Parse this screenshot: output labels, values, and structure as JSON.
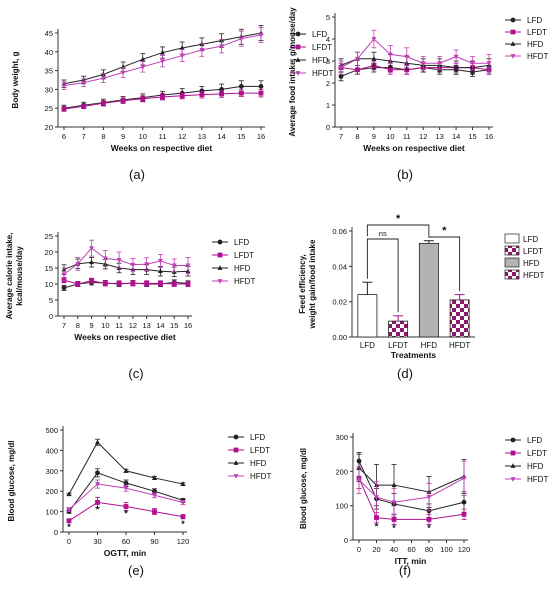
{
  "colors": {
    "lfd": "#222222",
    "lfdt": "#b0108e",
    "hfd": "#222222",
    "hfdt": "#c040b8",
    "hfd_bar": "#b3b3b3",
    "check": "#8b1a6b",
    "axis": "#333333"
  },
  "chart_data": [
    {
      "panel": "(a)",
      "type": "line",
      "xlabel": "Weeks on respective diet",
      "ylabel": "Body weight, g",
      "xlim": [
        6,
        16
      ],
      "ylim": [
        20,
        45
      ],
      "xticks": [
        6,
        7,
        8,
        9,
        10,
        11,
        12,
        13,
        14,
        15,
        16
      ],
      "yticks": [
        20,
        25,
        30,
        35,
        40,
        45
      ],
      "legend_position": "top-right",
      "x": [
        6,
        7,
        8,
        9,
        10,
        11,
        12,
        13,
        14,
        15,
        16
      ],
      "series": [
        {
          "name": "LFD",
          "marker": "circle",
          "values": [
            25,
            25.8,
            26.5,
            27.2,
            27.8,
            28.5,
            29,
            29.6,
            30,
            30.8,
            30.8
          ],
          "error": [
            0.8,
            0.8,
            0.9,
            0.9,
            1,
            1,
            1.2,
            1.2,
            1.4,
            1.5,
            1.5
          ]
        },
        {
          "name": "LFDT",
          "marker": "square",
          "values": [
            24.8,
            25.5,
            26.3,
            27,
            27.5,
            28,
            28.3,
            28.6,
            28.8,
            29,
            29
          ],
          "error": [
            0.6,
            0.6,
            0.7,
            0.7,
            0.8,
            0.8,
            0.8,
            0.9,
            0.9,
            0.9,
            1
          ]
        },
        {
          "name": "HFD",
          "marker": "triangle",
          "values": [
            31.5,
            32.5,
            34,
            36,
            38,
            39.8,
            41,
            42,
            43,
            44,
            45
          ],
          "error": [
            1,
            1,
            1.2,
            1.3,
            1.5,
            1.5,
            1.6,
            1.7,
            1.8,
            2,
            2
          ]
        },
        {
          "name": "HFDT",
          "marker": "triangle-down",
          "values": [
            31,
            31.8,
            33,
            34.5,
            36,
            37.5,
            39,
            40.5,
            41.5,
            43.5,
            44.5
          ],
          "error": [
            1,
            1,
            1.2,
            1.3,
            1.4,
            1.5,
            1.6,
            1.7,
            1.8,
            2,
            2
          ]
        }
      ]
    },
    {
      "panel": "(b)",
      "type": "line",
      "xlabel": "Weeks on respective diet",
      "ylabel": "Average food intake, g/mouse/day",
      "xlim": [
        7,
        16
      ],
      "ylim": [
        0,
        5
      ],
      "xticks": [
        7,
        8,
        9,
        10,
        11,
        12,
        13,
        14,
        15,
        16
      ],
      "yticks": [
        0,
        1,
        2,
        3,
        4,
        5
      ],
      "legend_position": "top-right",
      "x": [
        7,
        8,
        9,
        10,
        11,
        12,
        13,
        14,
        15,
        16
      ],
      "series": [
        {
          "name": "LFD",
          "marker": "circle",
          "values": [
            2.3,
            2.6,
            2.7,
            2.7,
            2.6,
            2.7,
            2.6,
            2.6,
            2.5,
            2.6
          ],
          "error": [
            0.2,
            0.2,
            0.2,
            0.2,
            0.2,
            0.2,
            0.2,
            0.2,
            0.2,
            0.2
          ]
        },
        {
          "name": "LFDT",
          "marker": "square",
          "values": [
            2.7,
            2.6,
            2.8,
            2.6,
            2.6,
            2.7,
            2.7,
            2.7,
            2.7,
            2.6
          ],
          "error": [
            0.2,
            0.2,
            0.2,
            0.2,
            0.2,
            0.2,
            0.2,
            0.2,
            0.2,
            0.2
          ]
        },
        {
          "name": "HFD",
          "marker": "triangle",
          "values": [
            2.8,
            3.1,
            3.1,
            3,
            2.9,
            2.8,
            2.8,
            2.7,
            2.7,
            2.8
          ],
          "error": [
            0.3,
            0.3,
            0.3,
            0.3,
            0.3,
            0.3,
            0.3,
            0.3,
            0.3,
            0.3
          ]
        },
        {
          "name": "HFDT",
          "marker": "triangle-down",
          "values": [
            2.7,
            3.1,
            4,
            3.3,
            3.2,
            2.9,
            2.9,
            3.2,
            2.9,
            2.9
          ],
          "error": [
            0.3,
            0.3,
            0.4,
            0.4,
            0.4,
            0.3,
            0.3,
            0.3,
            0.3,
            0.4
          ]
        }
      ]
    },
    {
      "panel": "(c)",
      "type": "line",
      "xlabel": "Weeks on respective diet",
      "ylabel_lines": [
        "Average calorie intake,",
        "kcal/mouse/day"
      ],
      "xlim": [
        7,
        16
      ],
      "ylim": [
        0,
        25
      ],
      "xticks": [
        7,
        8,
        9,
        10,
        11,
        12,
        13,
        14,
        15,
        16
      ],
      "yticks": [
        0,
        5,
        10,
        15,
        20,
        25
      ],
      "legend_position": "right",
      "x": [
        7,
        8,
        9,
        10,
        11,
        12,
        13,
        14,
        15,
        16
      ],
      "series": [
        {
          "name": "LFD",
          "marker": "circle",
          "values": [
            8.8,
            10,
            10.5,
            10.3,
            10,
            10.3,
            10,
            10,
            10.5,
            10.2
          ],
          "error": [
            0.8,
            0.8,
            0.8,
            0.8,
            0.8,
            0.8,
            0.8,
            0.8,
            0.8,
            0.8
          ]
        },
        {
          "name": "LFDT",
          "marker": "square",
          "values": [
            11.2,
            10,
            11,
            10.2,
            10.2,
            10.2,
            10.2,
            10.2,
            10,
            10
          ],
          "error": [
            0.8,
            0.8,
            0.8,
            0.8,
            0.8,
            0.8,
            0.8,
            0.8,
            0.8,
            0.8
          ]
        },
        {
          "name": "HFD",
          "marker": "triangle",
          "values": [
            14.5,
            16.3,
            16.8,
            16.2,
            15,
            14.5,
            14.5,
            14,
            13.8,
            14
          ],
          "error": [
            1.5,
            1.5,
            1.5,
            1.5,
            1.5,
            1.5,
            1.5,
            1.5,
            1.5,
            1.5
          ]
        },
        {
          "name": "HFDT",
          "marker": "triangle-down",
          "values": [
            13,
            16.3,
            21.2,
            18,
            17.5,
            16,
            16.2,
            17.2,
            15.8,
            15.8
          ],
          "error": [
            2,
            2,
            2.5,
            2.5,
            2.5,
            2,
            2,
            2,
            2,
            2.5
          ]
        }
      ]
    },
    {
      "panel": "(d)",
      "type": "bar",
      "xlabel": "Treatments",
      "ylabel_lines": [
        "Feed efficiency,",
        "weight gain/food intake"
      ],
      "ylim": [
        0,
        0.06
      ],
      "yticks": [
        0,
        0.02,
        0.04,
        0.06
      ],
      "ytick_labels": [
        "0.00",
        "0.02",
        "0.04",
        "0.06"
      ],
      "legend_position": "right",
      "categories": [
        "LFD",
        "LFDT",
        "HFD",
        "HFDT"
      ],
      "values": [
        0.024,
        0.009,
        0.053,
        0.021
      ],
      "error": [
        0.007,
        0.003,
        0.0015,
        0.003
      ],
      "fills": [
        "white",
        "checker",
        "gray",
        "checker"
      ],
      "annotations": [
        {
          "label": "ns",
          "between": [
            "LFD",
            "LFDT"
          ]
        },
        {
          "label": "*",
          "between": [
            "LFD",
            "HFD"
          ]
        },
        {
          "label": "*",
          "between": [
            "HFD",
            "HFDT"
          ]
        }
      ]
    },
    {
      "panel": "(e)",
      "type": "line",
      "xlabel": "OGTT, min",
      "ylabel": "Blood glucose, mg/dl",
      "xlim": [
        0,
        120
      ],
      "ylim": [
        0,
        500
      ],
      "xticks": [
        0,
        30,
        60,
        90,
        120
      ],
      "yticks": [
        0,
        100,
        200,
        300,
        400,
        500
      ],
      "legend_position": "right",
      "x": [
        0,
        30,
        60,
        90,
        120
      ],
      "series": [
        {
          "name": "LFD",
          "marker": "circle",
          "values": [
            100,
            290,
            240,
            200,
            155
          ],
          "error": [
            8,
            20,
            15,
            12,
            10
          ]
        },
        {
          "name": "LFDT",
          "marker": "square",
          "values": [
            55,
            145,
            125,
            100,
            75
          ],
          "error": [
            8,
            25,
            20,
            15,
            10
          ]
        },
        {
          "name": "HFD",
          "marker": "triangle",
          "values": [
            185,
            440,
            300,
            265,
            235
          ],
          "error": [
            5,
            15,
            8,
            8,
            6
          ]
        },
        {
          "name": "HFDT",
          "marker": "triangle-down",
          "values": [
            110,
            235,
            215,
            180,
            145
          ],
          "error": [
            10,
            20,
            15,
            12,
            10
          ]
        }
      ],
      "annotations": [
        {
          "label": "*",
          "x": 0,
          "y": 25
        },
        {
          "label": "*",
          "x": 30,
          "y": 110
        },
        {
          "label": "*",
          "x": 60,
          "y": 90
        },
        {
          "label": "*",
          "x": 120,
          "y": 40
        }
      ]
    },
    {
      "panel": "(f)",
      "type": "line",
      "xlabel": "ITT, min",
      "ylabel": "Blood glucose, mg/dl",
      "xlim": [
        0,
        120
      ],
      "ylim": [
        0,
        300
      ],
      "xticks": [
        0,
        20,
        40,
        60,
        80,
        100,
        120
      ],
      "yticks": [
        0,
        100,
        200,
        300
      ],
      "legend_position": "right",
      "x": [
        0,
        20,
        40,
        80,
        120
      ],
      "series": [
        {
          "name": "LFD",
          "marker": "circle",
          "values": [
            230,
            120,
            105,
            85,
            110
          ],
          "error": [
            25,
            30,
            30,
            20,
            30
          ]
        },
        {
          "name": "LFDT",
          "marker": "square",
          "values": [
            180,
            65,
            60,
            60,
            75
          ],
          "error": [
            30,
            15,
            15,
            15,
            15
          ]
        },
        {
          "name": "HFD",
          "marker": "triangle",
          "values": [
            210,
            160,
            160,
            140,
            185
          ],
          "error": [
            40,
            60,
            60,
            45,
            50
          ]
        },
        {
          "name": "HFDT",
          "marker": "triangle-down",
          "values": [
            175,
            125,
            110,
            125,
            180
          ],
          "error": [
            40,
            45,
            40,
            40,
            50
          ]
        }
      ],
      "annotations": [
        {
          "label": "*",
          "x": 20,
          "y": 40
        },
        {
          "label": "*",
          "x": 40,
          "y": 35
        },
        {
          "label": "*",
          "x": 80,
          "y": 35
        }
      ]
    }
  ]
}
